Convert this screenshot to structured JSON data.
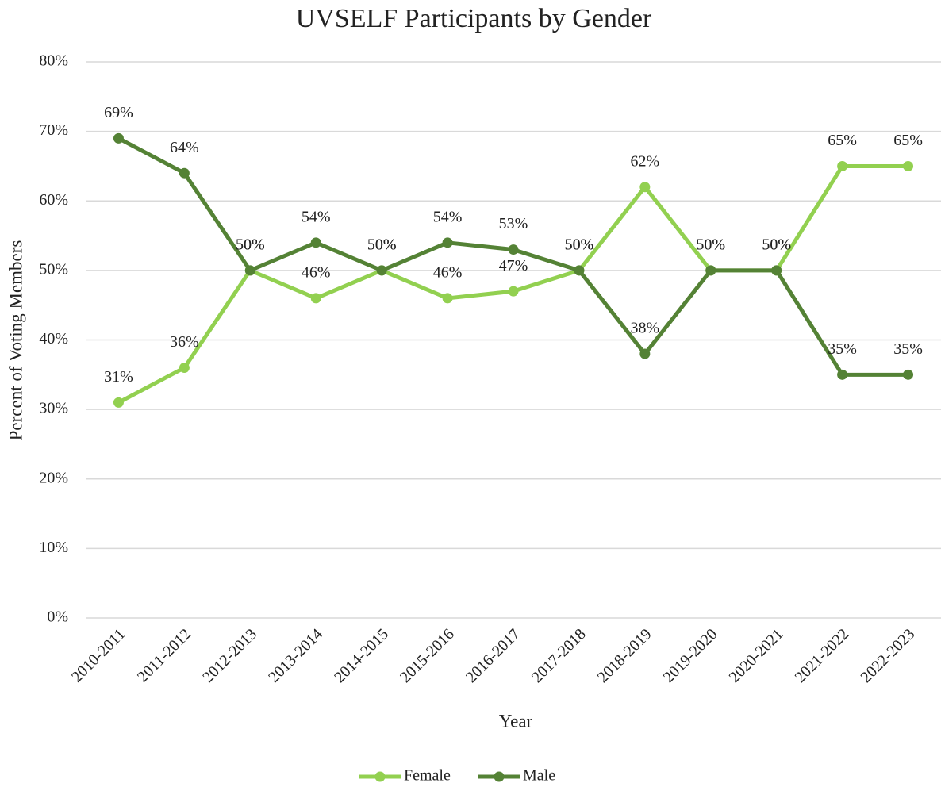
{
  "chart_data": {
    "type": "line",
    "title": "UVSELF Participants by Gender",
    "x_label": "Year",
    "y_label": "Percent of Voting Members",
    "categories": [
      "2010-2011",
      "2011-2012",
      "2012-2013",
      "2013-2014",
      "2014-2015",
      "2015-2016",
      "2016-2017",
      "2017-2018",
      "2018-2019",
      "2019-2020",
      "2020-2021",
      "2021-2022",
      "2022-2023"
    ],
    "series": [
      {
        "name": "Female",
        "color": "#92d050",
        "values": [
          31,
          36,
          50,
          46,
          50,
          46,
          47,
          50,
          62,
          50,
          50,
          65,
          65
        ],
        "value_labels": [
          "31%",
          "36%",
          "50%",
          "46%",
          "50%",
          "46%",
          "47%",
          "50%",
          "62%",
          "50%",
          "50%",
          "65%",
          "65%"
        ]
      },
      {
        "name": "Male",
        "color": "#548235",
        "values": [
          69,
          64,
          50,
          54,
          50,
          54,
          53,
          50,
          38,
          50,
          50,
          35,
          35
        ],
        "value_labels": [
          "69%",
          "64%",
          "50%",
          "54%",
          "50%",
          "54%",
          "53%",
          "50%",
          "38%",
          "50%",
          "50%",
          "35%",
          "35%"
        ]
      }
    ],
    "ylim": [
      0,
      80
    ],
    "yticks": [
      {
        "value": 0,
        "label": "0%"
      },
      {
        "value": 10,
        "label": "10%"
      },
      {
        "value": 20,
        "label": "20%"
      },
      {
        "value": 30,
        "label": "30%"
      },
      {
        "value": 40,
        "label": "40%"
      },
      {
        "value": 50,
        "label": "50%"
      },
      {
        "value": 60,
        "label": "60%"
      },
      {
        "value": 70,
        "label": "70%"
      },
      {
        "value": 80,
        "label": "80%"
      }
    ],
    "grid": true,
    "legend": "bottom"
  }
}
